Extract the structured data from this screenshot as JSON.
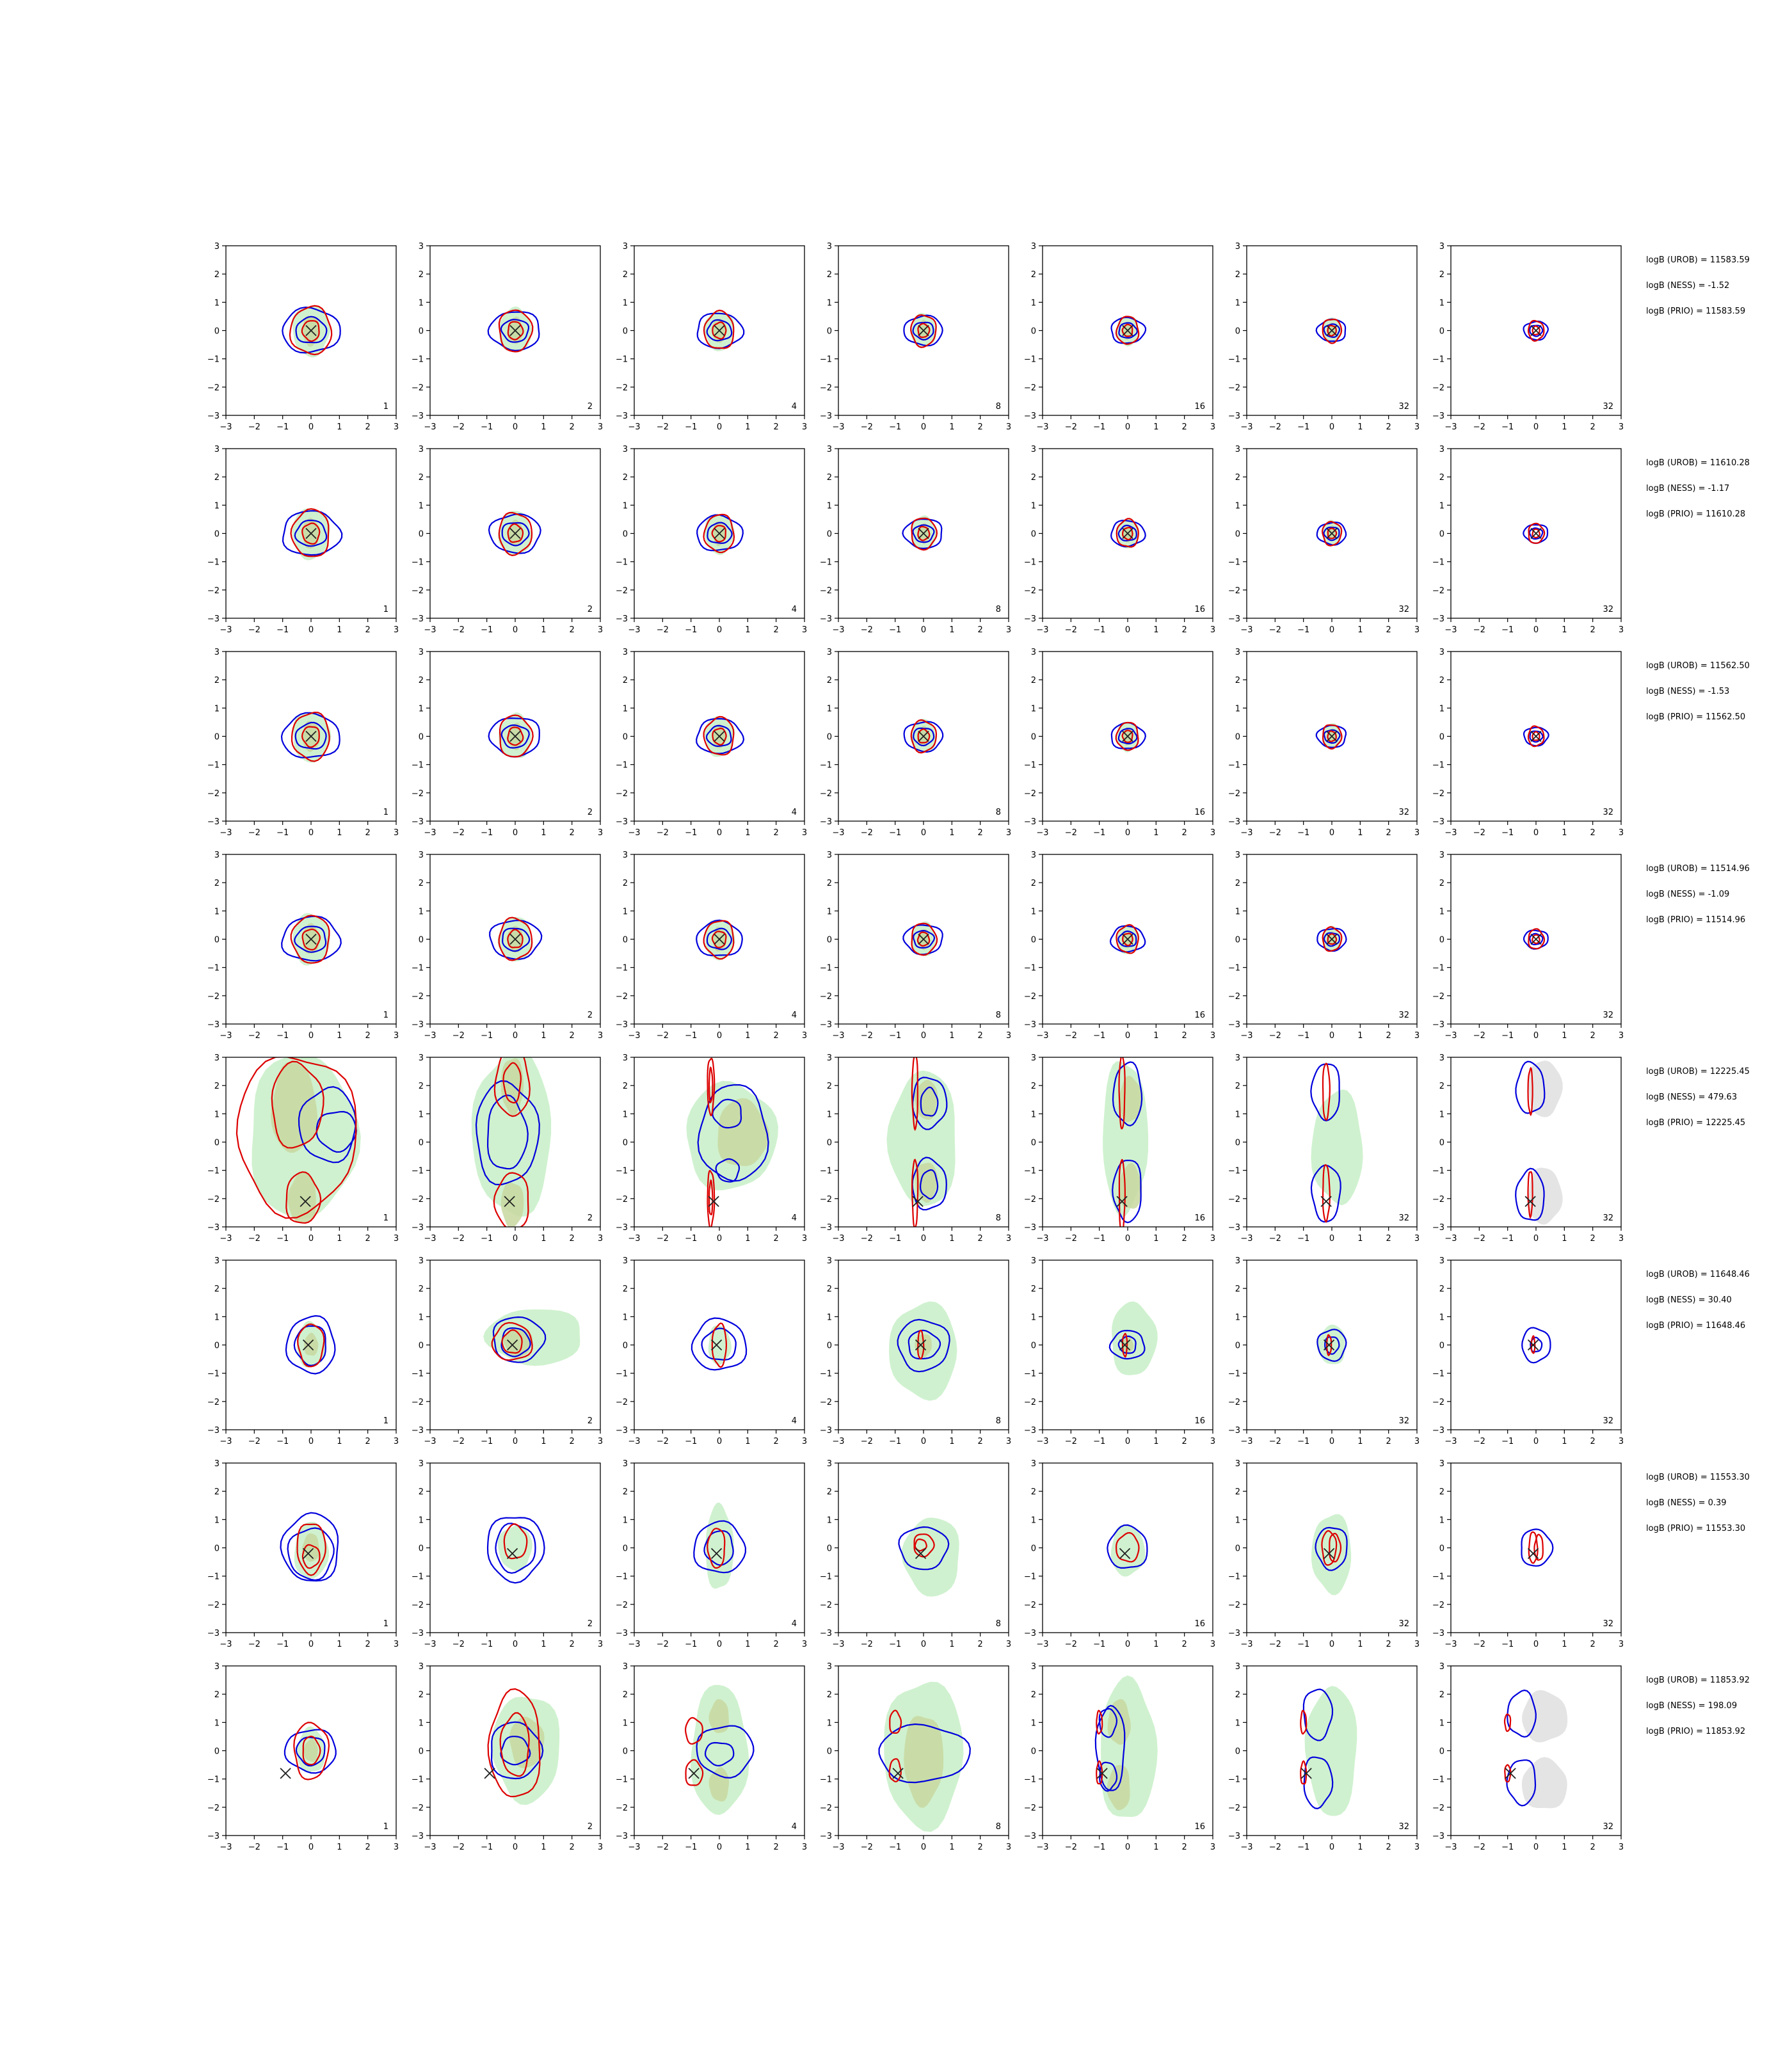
{
  "chart_data": {
    "type": "contour-grid",
    "xlim": [
      -3,
      3
    ],
    "ylim": [
      -3,
      3
    ],
    "xticks": [
      "−3",
      "−2",
      "−1",
      "0",
      "1",
      "2",
      "3"
    ],
    "yticks": [
      "−3",
      "−2",
      "−1",
      "0",
      "1",
      "2",
      "3"
    ],
    "column_labels": [
      "1",
      "2",
      "4",
      "8",
      "16",
      "32",
      "32"
    ],
    "grid": false,
    "colors": {
      "blue_contour": "#0000dd",
      "red_contour": "#dd0000",
      "green_fill": "#ccf0cc",
      "olive_fill": "#c8d8a0",
      "grey_fill": "#e4e4e4",
      "marker": "#222222"
    },
    "rows": [
      {
        "marker": [
          0,
          0
        ],
        "annotations": [
          "logB (UROB) = 11583.59",
          "logB (NESS) = -1.52",
          "logB (PRIO) = 11583.59"
        ]
      },
      {
        "marker": [
          0,
          0
        ],
        "annotations": [
          "logB (UROB) = 11610.28",
          "logB (NESS) = -1.17",
          "logB (PRIO) = 11610.28"
        ]
      },
      {
        "marker": [
          0,
          0
        ],
        "annotations": [
          "logB (UROB) = 11562.50",
          "logB (NESS) = -1.53",
          "logB (PRIO) = 11562.50"
        ]
      },
      {
        "marker": [
          0,
          0
        ],
        "annotations": [
          "logB (UROB) = 11514.96",
          "logB (NESS) = -1.09",
          "logB (PRIO) = 11514.96"
        ]
      },
      {
        "marker": [
          -0.2,
          -2.1
        ],
        "annotations": [
          "logB (UROB) = 12225.45",
          "logB (NESS) = 479.63",
          "logB (PRIO) = 12225.45"
        ]
      },
      {
        "marker": [
          -0.1,
          0
        ],
        "annotations": [
          "logB (UROB) = 11648.46",
          "logB (NESS) = 30.40",
          "logB (PRIO) = 11648.46"
        ]
      },
      {
        "marker": [
          -0.1,
          -0.2
        ],
        "annotations": [
          "logB (UROB) = 11553.30",
          "logB (NESS) = 0.39",
          "logB (PRIO) = 11553.30"
        ]
      },
      {
        "marker": [
          -0.9,
          -0.8
        ],
        "annotations": [
          "logB (UROB) = 11853.92",
          "logB (NESS) = 198.09",
          "logB (PRIO) = 11853.92"
        ]
      }
    ]
  }
}
